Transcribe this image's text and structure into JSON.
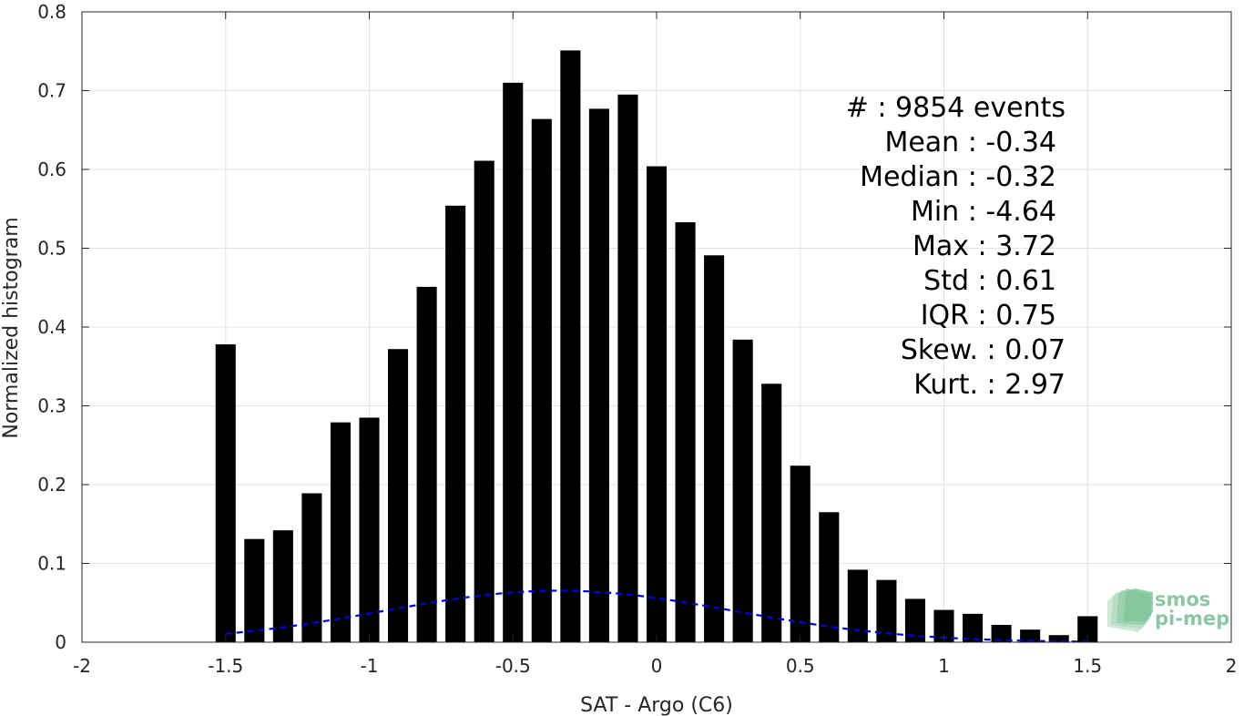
{
  "chart_data": {
    "type": "bar",
    "xlabel": "SAT - Argo (C6)",
    "ylabel": "Normalized histogram",
    "xlim": [
      -2,
      2
    ],
    "ylim": [
      0,
      0.8
    ],
    "xticks": [
      -2,
      -1.5,
      -1,
      -0.5,
      0,
      0.5,
      1,
      1.5,
      2
    ],
    "xtick_labels": [
      "-2",
      "-1.5",
      "-1",
      "-0.5",
      "0",
      "0.5",
      "1",
      "1.5",
      "2"
    ],
    "yticks": [
      0,
      0.1,
      0.2,
      0.3,
      0.4,
      0.5,
      0.6,
      0.7,
      0.8
    ],
    "ytick_labels": [
      "0",
      "0.1",
      "0.2",
      "0.3",
      "0.4",
      "0.5",
      "0.6",
      "0.7",
      "0.8"
    ],
    "grid": true,
    "bin_width": 0.1,
    "x": [
      -1.5,
      -1.4,
      -1.3,
      -1.2,
      -1.1,
      -1.0,
      -0.9,
      -0.8,
      -0.7,
      -0.6,
      -0.5,
      -0.4,
      -0.3,
      -0.2,
      -0.1,
      0.0,
      0.1,
      0.2,
      0.3,
      0.4,
      0.5,
      0.6,
      0.7,
      0.8,
      0.9,
      1.0,
      1.1,
      1.2,
      1.3,
      1.4,
      1.5
    ],
    "values": [
      0.378,
      0.131,
      0.142,
      0.189,
      0.279,
      0.285,
      0.372,
      0.451,
      0.554,
      0.611,
      0.71,
      0.664,
      0.751,
      0.677,
      0.695,
      0.604,
      0.533,
      0.491,
      0.384,
      0.328,
      0.224,
      0.165,
      0.092,
      0.079,
      0.055,
      0.041,
      0.036,
      0.022,
      0.016,
      0.009,
      0.033
    ],
    "bar_color": "#000000",
    "fit": {
      "type": "gaussian",
      "mean": -0.34,
      "std": 0.61,
      "x_range": [
        -1.5,
        1.5
      ],
      "color": "#0000dd",
      "style": "dashed"
    },
    "stats": [
      "#  : 9854 events",
      "Mean : -0.34",
      "Median : -0.32",
      "Min : -4.64",
      "Max : 3.72",
      "Std : 0.61",
      "IQR : 0.75",
      "Skew. : 0.07",
      "Kurt. : 2.97"
    ]
  },
  "logo": {
    "line1": "smos",
    "line2": "pi-mep"
  }
}
